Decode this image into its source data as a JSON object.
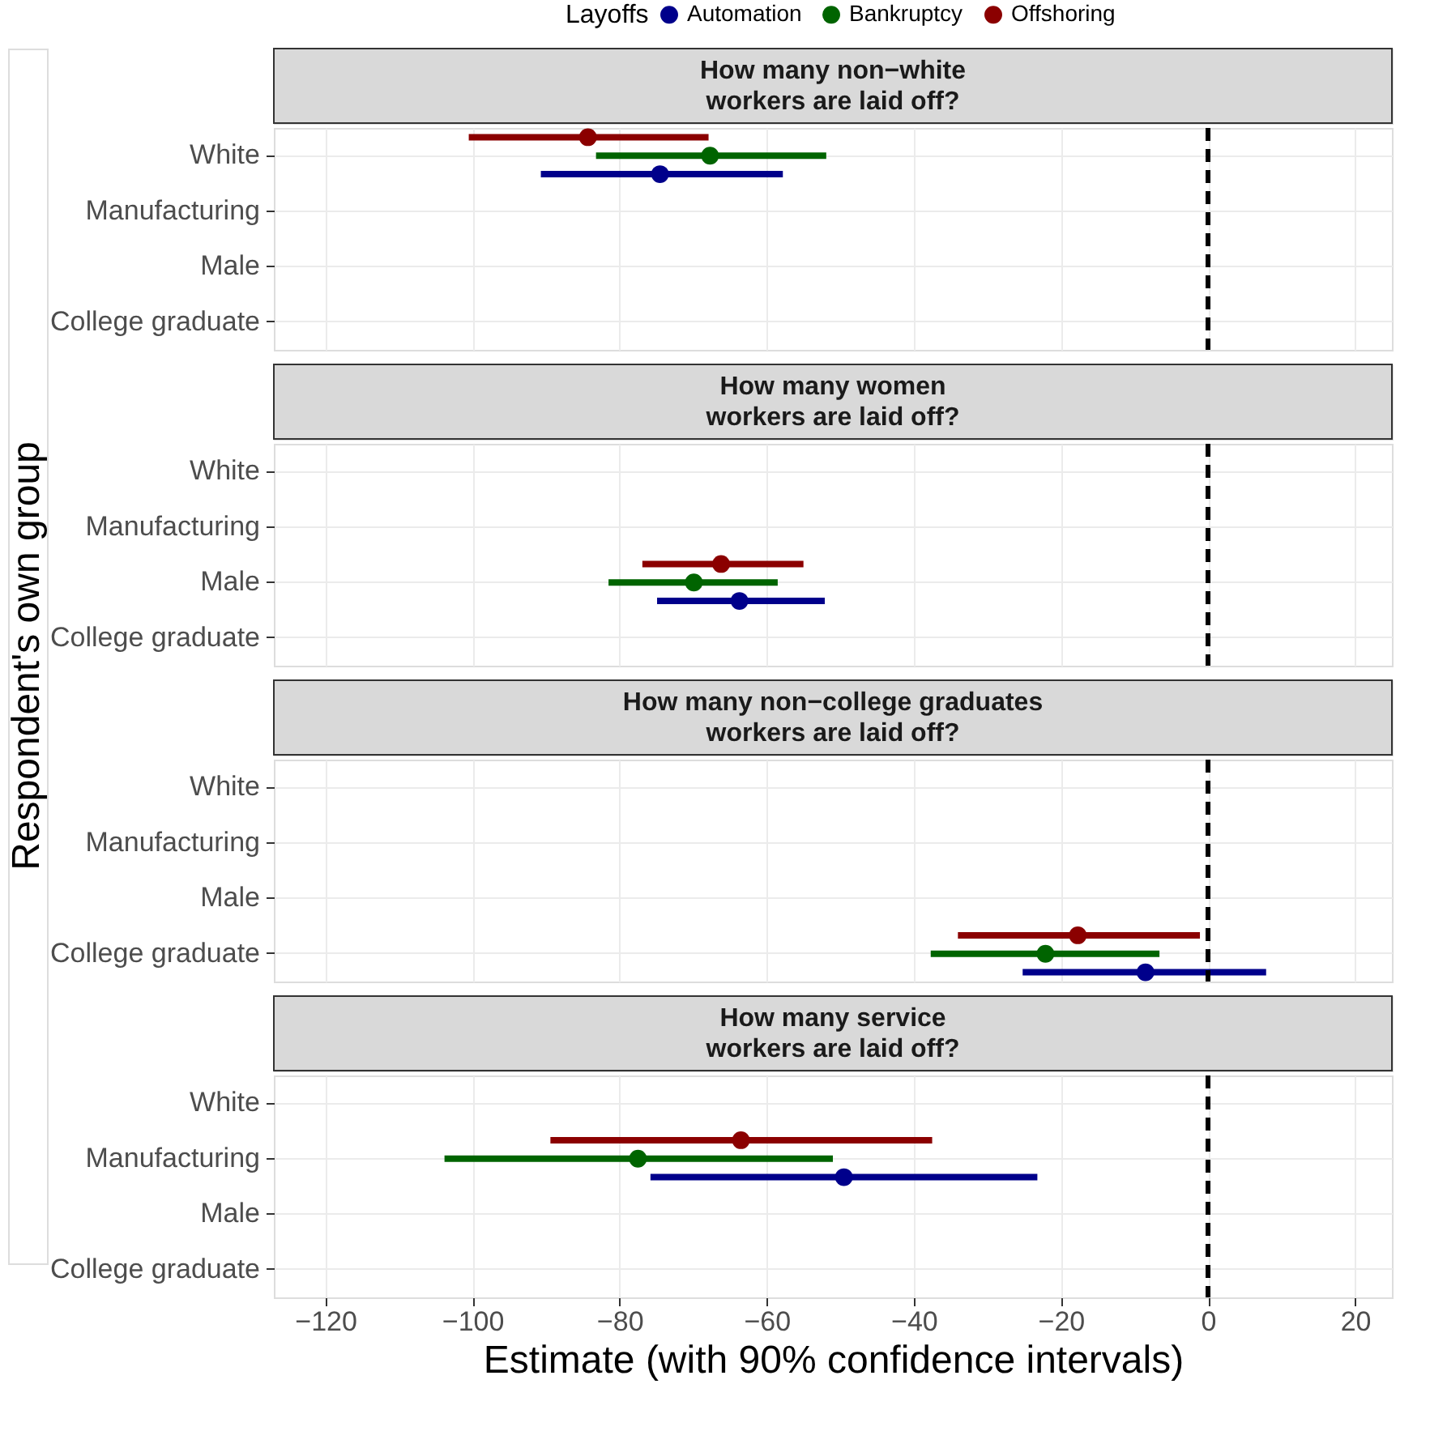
{
  "chart_data": [
    {
      "type": "scatter",
      "title": "How many non−white\nworkers are laid off?",
      "legend_title": "Layoffs",
      "legend": "top",
      "orientation": "horizontal",
      "categories": [
        "White",
        "Manufacturing",
        "Male",
        "College graduate"
      ],
      "xlim": [
        -127,
        25
      ],
      "xticks": [
        -120,
        -100,
        -80,
        -60,
        -40,
        -20,
        0,
        20
      ],
      "grid": true,
      "tick_labels": "y",
      "marker": "circle",
      "series": [
        {
          "name": "Automation",
          "color": "#00008b",
          "values": [
            -74.5,
            null,
            null,
            null
          ],
          "errors": [
            [
              -90.7,
              -57.8
            ],
            null,
            null,
            null
          ]
        },
        {
          "name": "Bankruptcy",
          "color": "#006400",
          "values": [
            -67.7,
            null,
            null,
            null
          ],
          "errors": [
            [
              -83.2,
              -51.9
            ],
            null,
            null,
            null
          ]
        },
        {
          "name": "Offshoring",
          "color": "#8b0000",
          "values": [
            -84.3,
            null,
            null,
            null
          ],
          "errors": [
            [
              -100.5,
              -67.9
            ],
            null,
            null,
            null
          ]
        }
      ],
      "ref_lines": [
        {
          "axis": "x",
          "value": 0,
          "color": "#000000",
          "line_style": "dashed"
        }
      ]
    },
    {
      "type": "scatter",
      "title": "How many women\nworkers are laid off?",
      "orientation": "horizontal",
      "categories": [
        "White",
        "Manufacturing",
        "Male",
        "College graduate"
      ],
      "xlim": [
        -127,
        25
      ],
      "xticks": [
        -120,
        -100,
        -80,
        -60,
        -40,
        -20,
        0,
        20
      ],
      "grid": true,
      "tick_labels": "y",
      "marker": "circle",
      "series": [
        {
          "color": "#00008b",
          "values": [
            null,
            null,
            -63.7,
            null
          ],
          "errors": [
            null,
            null,
            [
              -74.9,
              -52.1
            ],
            null
          ]
        },
        {
          "color": "#006400",
          "values": [
            null,
            null,
            -69.9,
            null
          ],
          "errors": [
            null,
            null,
            [
              -81.5,
              -58.5
            ],
            null
          ]
        },
        {
          "color": "#8b0000",
          "values": [
            null,
            null,
            -66.2,
            null
          ],
          "errors": [
            null,
            null,
            [
              -76.9,
              -55.0
            ],
            null
          ]
        }
      ],
      "ref_lines": [
        {
          "axis": "x",
          "value": 0,
          "color": "#000000",
          "line_style": "dashed"
        }
      ]
    },
    {
      "type": "scatter",
      "title": "How many non−college graduates\nworkers are laid off?",
      "ylabel": "Respondent's own group",
      "orientation": "horizontal",
      "categories": [
        "White",
        "Manufacturing",
        "Male",
        "College graduate"
      ],
      "xlim": [
        -127,
        25
      ],
      "xticks": [
        -120,
        -100,
        -80,
        -60,
        -40,
        -20,
        0,
        20
      ],
      "grid": true,
      "tick_labels": "y",
      "marker": "circle",
      "series": [
        {
          "color": "#00008b",
          "values": [
            null,
            null,
            null,
            -8.5
          ],
          "errors": [
            null,
            null,
            null,
            [
              -25.2,
              7.9
            ]
          ]
        },
        {
          "color": "#006400",
          "values": [
            null,
            null,
            null,
            -22.1
          ],
          "errors": [
            null,
            null,
            null,
            [
              -37.7,
              -6.6
            ]
          ]
        },
        {
          "color": "#8b0000",
          "values": [
            null,
            null,
            null,
            -17.7
          ],
          "errors": [
            null,
            null,
            null,
            [
              -34.0,
              -1.1
            ]
          ]
        }
      ],
      "ref_lines": [
        {
          "axis": "x",
          "value": 0,
          "color": "#000000",
          "line_style": "dashed"
        }
      ]
    },
    {
      "type": "scatter",
      "title": "How many service\nworkers are laid off?",
      "xlabel": "Estimate (with 90% confidence intervals)",
      "orientation": "horizontal",
      "categories": [
        "White",
        "Manufacturing",
        "Male",
        "College graduate"
      ],
      "xlim": [
        -127,
        25
      ],
      "xticks": [
        -120,
        -100,
        -80,
        -60,
        -40,
        -20,
        0,
        20
      ],
      "grid": true,
      "marker": "circle",
      "series": [
        {
          "color": "#00008b",
          "values": [
            null,
            -49.5,
            null,
            null
          ],
          "errors": [
            null,
            [
              -75.8,
              -23.2
            ],
            null,
            null
          ]
        },
        {
          "color": "#006400",
          "values": [
            null,
            -77.5,
            null,
            null
          ],
          "errors": [
            null,
            [
              -103.8,
              -51.0
            ],
            null,
            null
          ]
        },
        {
          "color": "#8b0000",
          "values": [
            null,
            -63.5,
            null,
            null
          ],
          "errors": [
            null,
            [
              -89.4,
              -37.5
            ],
            null,
            null
          ]
        }
      ],
      "ref_lines": [
        {
          "axis": "x",
          "value": 0,
          "color": "#000000",
          "line_style": "dashed"
        }
      ]
    }
  ]
}
